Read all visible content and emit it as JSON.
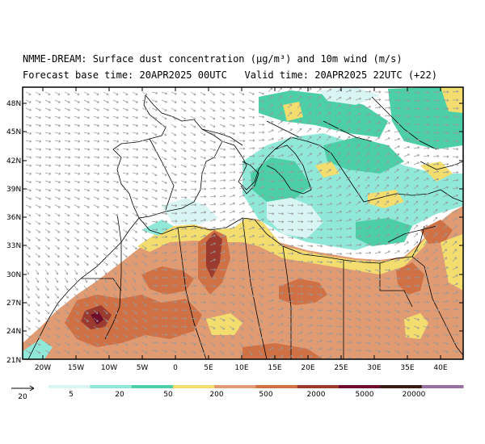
{
  "header": {
    "title_line1": "NMME-DREAM: Surface dust concentration (μg/m³) and 10m wind (m/s)",
    "title_line2": "Forecast base time: 20APR2025 00UTC   Valid time: 20APR2025 22UTC (+22)"
  },
  "map": {
    "lat_labels": [
      "48N",
      "45N",
      "42N",
      "39N",
      "36N",
      "33N",
      "30N",
      "27N",
      "24N",
      "21N"
    ],
    "lon_labels": [
      "20W",
      "15W",
      "10W",
      "5W",
      "0",
      "5E",
      "10E",
      "15E",
      "20E",
      "25E",
      "30E",
      "35E",
      "40E"
    ]
  },
  "legend": {
    "wind_ref_label": "20",
    "thresholds": [
      "5",
      "20",
      "50",
      "200",
      "500",
      "2000",
      "5000",
      "20000"
    ],
    "colors": [
      "#d8f5f3",
      "#8fe8d8",
      "#4ccfa6",
      "#f2dd6e",
      "#e19b73",
      "#cf7045",
      "#9b3a2e",
      "#6d0d2b",
      "#3a1a14",
      "#9a6fa3"
    ]
  }
}
